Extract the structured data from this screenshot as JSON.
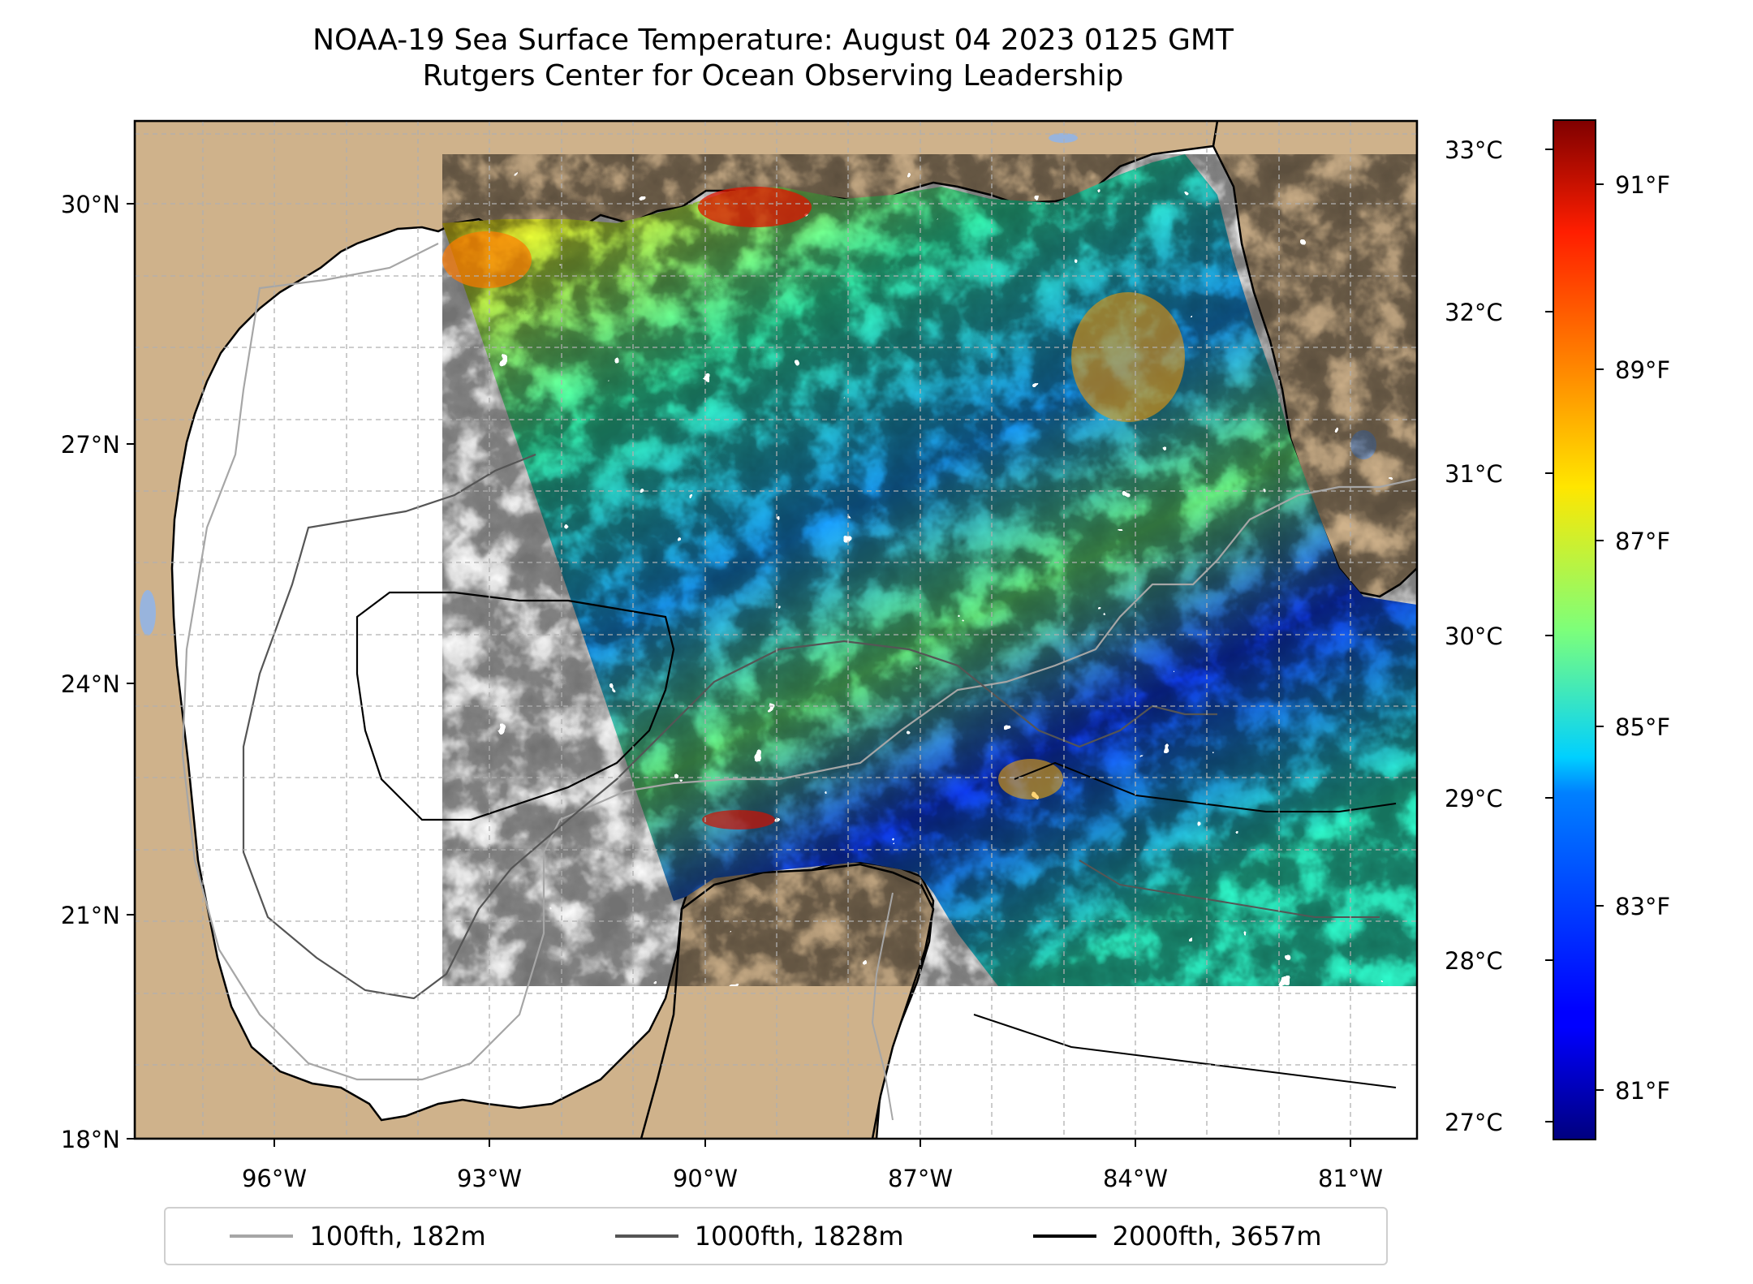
{
  "title": {
    "line1": "NOAA-19 Sea Surface Temperature: August 04 2023 0125 GMT",
    "line2": "Rutgers Center for Ocean Observing Leadership"
  },
  "map": {
    "lat_ticks": [
      "30°N",
      "27°N",
      "24°N",
      "21°N",
      "18°N"
    ],
    "lon_ticks": [
      "96°W",
      "93°W",
      "90°W",
      "87°W",
      "84°W",
      "81°W"
    ],
    "extent": {
      "lon_min": -98.3,
      "lon_max": -80.4,
      "lat_min": 18.0,
      "lat_max": 31.0
    },
    "colors": {
      "land": "#cfb28b",
      "lake": "#98b4dd",
      "grid": "#b0b0b0"
    }
  },
  "colorbar": {
    "celsius_ticks": [
      "33°C",
      "32°C",
      "31°C",
      "30°C",
      "29°C",
      "28°C",
      "27°C"
    ],
    "fahrenheit_ticks": [
      "91°F",
      "89°F",
      "87°F",
      "85°F",
      "83°F",
      "81°F"
    ],
    "colormap": "jet",
    "range_c": [
      26.9,
      33.2
    ]
  },
  "legend": {
    "items": [
      {
        "label": "100fth, 182m",
        "color": "#a6a6a6"
      },
      {
        "label": "1000fth, 1828m",
        "color": "#555555"
      },
      {
        "label": "2000fth, 3657m",
        "color": "#000000"
      }
    ]
  }
}
